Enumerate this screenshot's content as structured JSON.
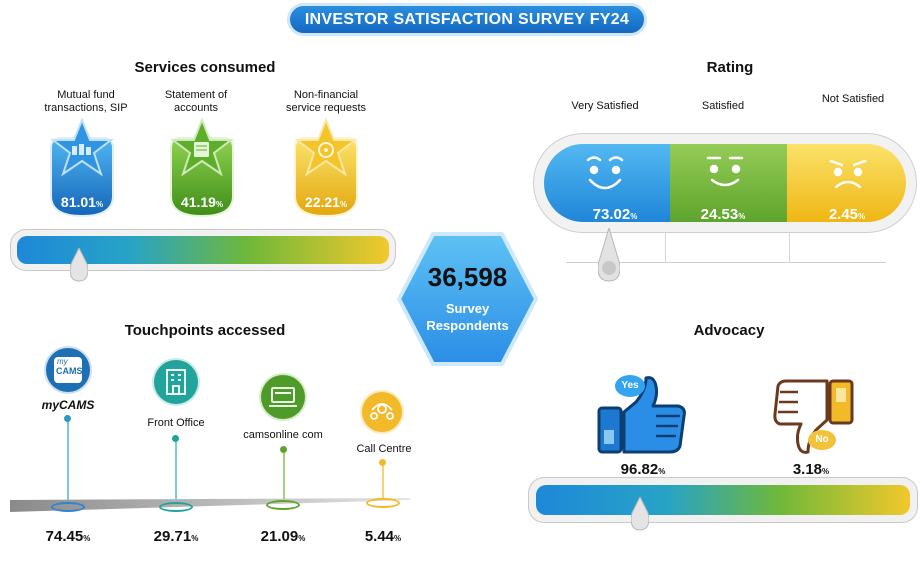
{
  "header": {
    "title": "INVESTOR SATISFACTION SURVEY FY24"
  },
  "services": {
    "title": "Services consumed",
    "items": [
      {
        "label": "Mutual fund transactions, SIP",
        "value": "81.01",
        "unit": "%",
        "color": "#1b7fd4",
        "icon": "mutual-fund-icon"
      },
      {
        "label": "Statement of accounts",
        "value": "41.19",
        "unit": "%",
        "color": "#4ea320",
        "icon": "statement-icon"
      },
      {
        "label": "Non-financial service requests",
        "value": "22.21",
        "unit": "%",
        "color": "#e9b916",
        "icon": "service-request-icon"
      }
    ]
  },
  "center": {
    "count": "36,598",
    "line1": "Survey",
    "line2": "Respondents"
  },
  "rating": {
    "title": "Rating",
    "items": [
      {
        "label": "Very Satisfied",
        "value": "73.02",
        "unit": "%",
        "color": "#2f9be3",
        "icon": "happy-face-icon"
      },
      {
        "label": "Satisfied",
        "value": "24.53",
        "unit": "%",
        "color": "#72b23e",
        "icon": "smile-face-icon"
      },
      {
        "label": "Not Satisfied",
        "value": "2.45",
        "unit": "%",
        "color": "#f2c624",
        "icon": "sad-face-icon"
      }
    ]
  },
  "touchpoints": {
    "title": "Touchpoints accessed",
    "items": [
      {
        "label": "myCAMS",
        "value": "74.45",
        "unit": "%",
        "icon": "mycams-app-icon",
        "icon_text_1": "my",
        "icon_text_2": "CAMS"
      },
      {
        "label": "Front Office",
        "value": "29.71",
        "unit": "%",
        "icon": "building-icon"
      },
      {
        "label": "camsonline com",
        "value": "21.09",
        "unit": "%",
        "icon": "laptop-icon"
      },
      {
        "label": "Call Centre",
        "value": "5.44",
        "unit": "%",
        "icon": "headset-icon"
      }
    ]
  },
  "advocacy": {
    "title": "Advocacy",
    "items": [
      {
        "badge": "Yes",
        "value": "96.82",
        "unit": "%",
        "icon": "thumbs-up-icon"
      },
      {
        "badge": "No",
        "value": "3.18",
        "unit": "%",
        "icon": "thumbs-down-icon"
      }
    ]
  }
}
